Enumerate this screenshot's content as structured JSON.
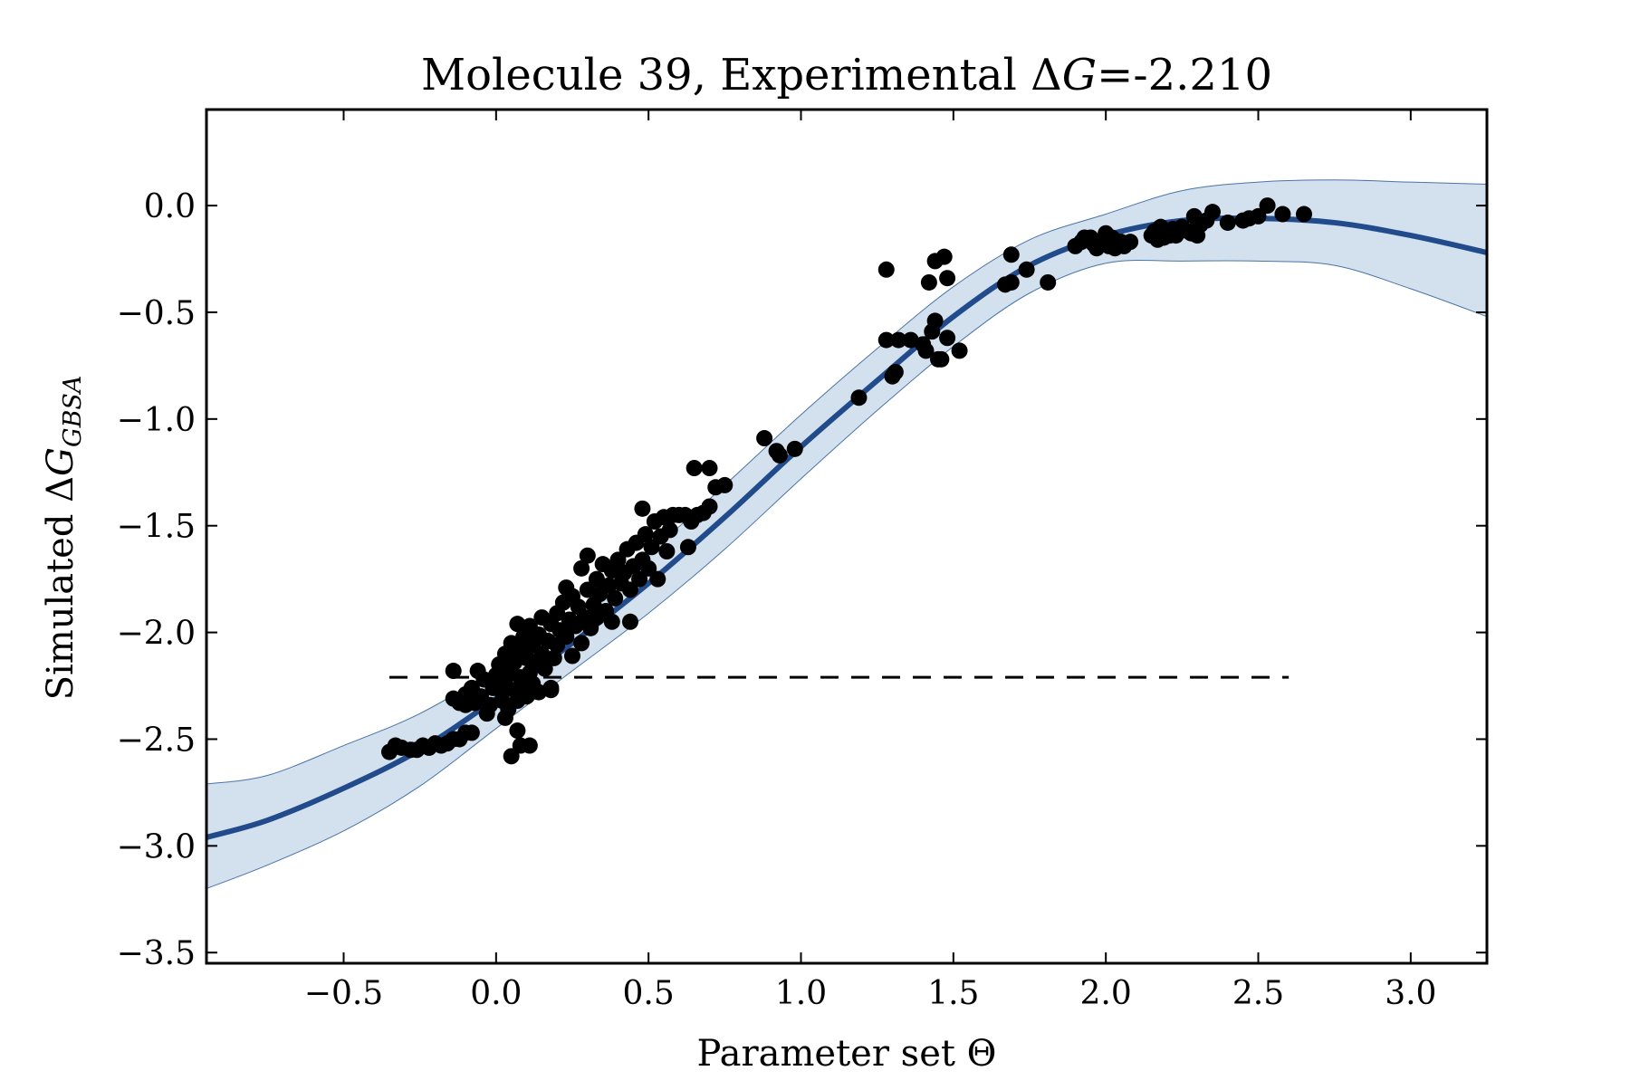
{
  "chart_data": {
    "type": "scatter",
    "title": {
      "prefix": "Molecule 39, Experimental ",
      "delta": "Δ",
      "var": "G",
      "suffix": "=-2.210"
    },
    "xlabel": "Parameter set Θ",
    "ylabel": {
      "prefix": "Simulated ",
      "delta": "Δ",
      "var": "G",
      "sub": "GBSA"
    },
    "xlim": [
      -0.95,
      3.25
    ],
    "ylim": [
      -3.55,
      0.45
    ],
    "xticks": [
      -0.5,
      0.0,
      0.5,
      1.0,
      1.5,
      2.0,
      2.5,
      3.0
    ],
    "xtick_labels": [
      "−0.5",
      "0.0",
      "0.5",
      "1.0",
      "1.5",
      "2.0",
      "2.5",
      "3.0"
    ],
    "yticks": [
      0.0,
      -0.5,
      -1.0,
      -1.5,
      -2.0,
      -2.5,
      -3.0,
      -3.5
    ],
    "ytick_labels": [
      "0.0",
      "−0.5",
      "−1.0",
      "−1.5",
      "−2.0",
      "−2.5",
      "−3.0",
      "−3.5"
    ],
    "grid": false,
    "colors": {
      "fit_line": "#224b8b",
      "band_fill": "#d3e0ee",
      "band_edge": "#4a74a8",
      "points": "#000000",
      "reference_line": "#000000"
    },
    "series": [
      {
        "type": "line",
        "x": [
          -0.95,
          -0.75,
          -0.5,
          -0.25,
          0.0,
          0.25,
          0.5,
          0.75,
          1.0,
          1.25,
          1.5,
          1.75,
          2.0,
          2.25,
          2.5,
          2.75,
          3.0,
          3.25
        ],
        "y": [
          -2.96,
          -2.88,
          -2.73,
          -2.55,
          -2.31,
          -2.05,
          -1.77,
          -1.46,
          -1.13,
          -0.82,
          -0.52,
          -0.28,
          -0.14,
          -0.07,
          -0.06,
          -0.08,
          -0.14,
          -0.22
        ]
      },
      {
        "type": "band",
        "x": [
          -0.95,
          -0.75,
          -0.5,
          -0.25,
          0.0,
          0.25,
          0.5,
          0.75,
          1.0,
          1.25,
          1.5,
          1.75,
          2.0,
          2.25,
          2.5,
          2.75,
          3.0,
          3.25
        ],
        "upper": [
          -2.71,
          -2.67,
          -2.53,
          -2.38,
          -2.17,
          -1.92,
          -1.63,
          -1.31,
          -0.98,
          -0.67,
          -0.38,
          -0.16,
          -0.04,
          0.07,
          0.11,
          0.12,
          0.11,
          0.1
        ],
        "lower": [
          -3.2,
          -3.09,
          -2.93,
          -2.72,
          -2.45,
          -2.18,
          -1.91,
          -1.61,
          -1.28,
          -0.96,
          -0.66,
          -0.41,
          -0.27,
          -0.26,
          -0.26,
          -0.28,
          -0.39,
          -0.52
        ]
      },
      {
        "type": "hline",
        "y": -2.21,
        "x": [
          -0.35,
          2.6
        ]
      },
      {
        "type": "scatter",
        "points": [
          [
            -0.35,
            -2.56
          ],
          [
            -0.33,
            -2.53
          ],
          [
            -0.31,
            -2.54
          ],
          [
            -0.28,
            -2.55
          ],
          [
            -0.26,
            -2.55
          ],
          [
            -0.24,
            -2.53
          ],
          [
            -0.22,
            -2.54
          ],
          [
            -0.2,
            -2.52
          ],
          [
            -0.18,
            -2.53
          ],
          [
            -0.16,
            -2.52
          ],
          [
            -0.14,
            -2.5
          ],
          [
            -0.12,
            -2.5
          ],
          [
            -0.1,
            -2.47
          ],
          [
            -0.08,
            -2.47
          ],
          [
            -0.14,
            -2.18
          ],
          [
            -0.14,
            -2.31
          ],
          [
            -0.12,
            -2.33
          ],
          [
            -0.1,
            -2.29
          ],
          [
            -0.1,
            -2.34
          ],
          [
            -0.08,
            -2.26
          ],
          [
            -0.07,
            -2.33
          ],
          [
            -0.06,
            -2.18
          ],
          [
            -0.05,
            -2.3
          ],
          [
            -0.04,
            -2.22
          ],
          [
            -0.03,
            -2.38
          ],
          [
            -0.02,
            -2.34
          ],
          [
            -0.01,
            -2.26
          ],
          [
            0.0,
            -2.2
          ],
          [
            0.01,
            -2.15
          ],
          [
            0.02,
            -2.28
          ],
          [
            0.02,
            -2.32
          ],
          [
            0.03,
            -2.1
          ],
          [
            0.03,
            -2.22
          ],
          [
            0.04,
            -2.36
          ],
          [
            0.05,
            -2.18
          ],
          [
            0.05,
            -2.05
          ],
          [
            0.06,
            -2.27
          ],
          [
            0.06,
            -2.14
          ],
          [
            0.07,
            -2.32
          ],
          [
            0.07,
            -1.96
          ],
          [
            0.08,
            -2.21
          ],
          [
            0.08,
            -2.09
          ],
          [
            0.09,
            -2.25
          ],
          [
            0.09,
            -2.02
          ],
          [
            0.1,
            -2.3
          ],
          [
            0.1,
            -2.12
          ],
          [
            0.11,
            -2.19
          ],
          [
            0.11,
            -1.97
          ],
          [
            0.12,
            -2.06
          ],
          [
            0.12,
            -2.24
          ],
          [
            0.13,
            -2.15
          ],
          [
            0.14,
            -2.01
          ],
          [
            0.14,
            -2.28
          ],
          [
            0.15,
            -1.93
          ],
          [
            0.15,
            -2.1
          ],
          [
            0.16,
            -2.17
          ],
          [
            0.17,
            -2.04
          ],
          [
            0.18,
            -2.27
          ],
          [
            0.18,
            -1.96
          ],
          [
            0.19,
            -2.12
          ],
          [
            0.2,
            -1.91
          ],
          [
            0.2,
            -2.06
          ],
          [
            0.21,
            -1.99
          ],
          [
            0.22,
            -1.86
          ],
          [
            0.23,
            -2.02
          ],
          [
            0.23,
            -1.79
          ],
          [
            0.24,
            -1.94
          ],
          [
            0.25,
            -2.11
          ],
          [
            0.25,
            -1.83
          ],
          [
            0.26,
            -1.97
          ],
          [
            0.27,
            -1.88
          ],
          [
            0.28,
            -1.7
          ],
          [
            0.28,
            -2.05
          ],
          [
            0.29,
            -1.93
          ],
          [
            0.3,
            -1.8
          ],
          [
            0.3,
            -1.64
          ],
          [
            0.31,
            -1.98
          ],
          [
            0.32,
            -1.87
          ],
          [
            0.33,
            -1.75
          ],
          [
            0.33,
            -1.93
          ],
          [
            0.34,
            -1.82
          ],
          [
            0.35,
            -1.68
          ],
          [
            0.36,
            -1.9
          ],
          [
            0.37,
            -1.78
          ],
          [
            0.38,
            -1.71
          ],
          [
            0.38,
            -1.95
          ],
          [
            0.39,
            -1.84
          ],
          [
            0.4,
            -1.66
          ],
          [
            0.41,
            -1.77
          ],
          [
            0.42,
            -1.72
          ],
          [
            0.43,
            -1.61
          ],
          [
            0.44,
            -1.8
          ],
          [
            0.44,
            -1.95
          ],
          [
            0.45,
            -1.69
          ],
          [
            0.46,
            -1.58
          ],
          [
            0.47,
            -1.75
          ],
          [
            0.48,
            -1.66
          ],
          [
            0.48,
            -1.42
          ],
          [
            0.49,
            -1.54
          ],
          [
            0.5,
            -1.7
          ],
          [
            0.51,
            -1.6
          ],
          [
            0.52,
            -1.48
          ],
          [
            0.53,
            -1.75
          ],
          [
            0.54,
            -1.55
          ],
          [
            0.55,
            -1.46
          ],
          [
            0.56,
            -1.62
          ],
          [
            0.57,
            -1.52
          ],
          [
            0.58,
            -1.45
          ],
          [
            0.6,
            -1.45
          ],
          [
            0.62,
            -1.45
          ],
          [
            0.64,
            -1.48
          ],
          [
            0.66,
            -1.45
          ],
          [
            0.63,
            -1.6
          ],
          [
            0.68,
            -1.44
          ],
          [
            0.05,
            -2.58
          ],
          [
            0.08,
            -2.53
          ],
          [
            0.11,
            -2.53
          ],
          [
            0.18,
            -2.26
          ],
          [
            0.07,
            -2.46
          ],
          [
            0.03,
            -2.4
          ],
          [
            0.65,
            -1.23
          ],
          [
            0.7,
            -1.23
          ],
          [
            0.72,
            -1.32
          ],
          [
            0.75,
            -1.31
          ],
          [
            0.7,
            -1.41
          ],
          [
            0.88,
            -1.09
          ],
          [
            0.93,
            -1.17
          ],
          [
            0.98,
            -1.14
          ],
          [
            0.92,
            -1.15
          ],
          [
            1.19,
            -0.9
          ],
          [
            1.28,
            -0.3
          ],
          [
            1.28,
            -0.63
          ],
          [
            1.3,
            -0.8
          ],
          [
            1.31,
            -0.78
          ],
          [
            1.32,
            -0.63
          ],
          [
            1.36,
            -0.63
          ],
          [
            1.4,
            -0.65
          ],
          [
            1.41,
            -0.68
          ],
          [
            1.42,
            -0.36
          ],
          [
            1.43,
            -0.59
          ],
          [
            1.44,
            -0.26
          ],
          [
            1.44,
            -0.54
          ],
          [
            1.45,
            -0.72
          ],
          [
            1.46,
            -0.72
          ],
          [
            1.47,
            -0.24
          ],
          [
            1.48,
            -0.34
          ],
          [
            1.48,
            -0.62
          ],
          [
            1.52,
            -0.68
          ],
          [
            1.67,
            -0.37
          ],
          [
            1.69,
            -0.36
          ],
          [
            1.69,
            -0.23
          ],
          [
            1.74,
            -0.3
          ],
          [
            1.81,
            -0.36
          ],
          [
            1.9,
            -0.19
          ],
          [
            1.92,
            -0.17
          ],
          [
            1.93,
            -0.15
          ],
          [
            1.95,
            -0.15
          ],
          [
            1.96,
            -0.18
          ],
          [
            1.97,
            -0.2
          ],
          [
            1.98,
            -0.18
          ],
          [
            1.99,
            -0.17
          ],
          [
            2.0,
            -0.13
          ],
          [
            2.01,
            -0.19
          ],
          [
            2.02,
            -0.15
          ],
          [
            2.03,
            -0.2
          ],
          [
            2.05,
            -0.17
          ],
          [
            2.06,
            -0.19
          ],
          [
            2.08,
            -0.17
          ],
          [
            2.15,
            -0.14
          ],
          [
            2.16,
            -0.12
          ],
          [
            2.17,
            -0.16
          ],
          [
            2.18,
            -0.1
          ],
          [
            2.19,
            -0.15
          ],
          [
            2.2,
            -0.12
          ],
          [
            2.21,
            -0.14
          ],
          [
            2.22,
            -0.11
          ],
          [
            2.23,
            -0.14
          ],
          [
            2.25,
            -0.1
          ],
          [
            2.27,
            -0.12
          ],
          [
            2.28,
            -0.13
          ],
          [
            2.29,
            -0.05
          ],
          [
            2.3,
            -0.14
          ],
          [
            2.31,
            -0.09
          ],
          [
            2.33,
            -0.07
          ],
          [
            2.35,
            -0.03
          ],
          [
            2.4,
            -0.08
          ],
          [
            2.45,
            -0.07
          ],
          [
            2.47,
            -0.06
          ],
          [
            2.5,
            -0.05
          ],
          [
            2.53,
            0.0
          ],
          [
            2.58,
            -0.04
          ],
          [
            2.65,
            -0.04
          ]
        ]
      }
    ]
  }
}
